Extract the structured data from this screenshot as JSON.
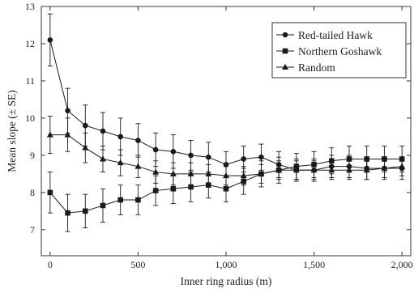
{
  "chart_data": {
    "type": "line",
    "title": "",
    "xlabel": "Inner ring radius (m)",
    "ylabel": "Mean slope (± SE)",
    "xlim": [
      -50,
      2050
    ],
    "ylim": [
      6.3,
      13
    ],
    "x_ticks": [
      0,
      500,
      1000,
      1500,
      2000
    ],
    "x_tick_labels": [
      "0",
      "500",
      "1,000",
      "1,500",
      "2,000"
    ],
    "y_ticks": [
      7,
      8,
      9,
      10,
      11,
      12,
      13
    ],
    "y_tick_labels": [
      "7",
      "8",
      "9",
      "10",
      "11",
      "12",
      "13"
    ],
    "grid": false,
    "legend_position": "top-right",
    "x": [
      0,
      100,
      200,
      300,
      400,
      500,
      600,
      700,
      800,
      900,
      1000,
      1100,
      1200,
      1300,
      1400,
      1500,
      1600,
      1700,
      1800,
      1900,
      2000
    ],
    "series": [
      {
        "name": "Red-tailed Hawk",
        "marker": "circle",
        "values": [
          12.1,
          10.2,
          9.8,
          9.65,
          9.5,
          9.4,
          9.15,
          9.1,
          9.0,
          8.95,
          8.75,
          8.9,
          8.95,
          8.75,
          8.6,
          8.6,
          8.7,
          8.7,
          8.65,
          8.65,
          8.65
        ],
        "se": [
          0.7,
          0.6,
          0.55,
          0.5,
          0.5,
          0.45,
          0.45,
          0.45,
          0.4,
          0.4,
          0.35,
          0.35,
          0.35,
          0.35,
          0.3,
          0.3,
          0.3,
          0.3,
          0.3,
          0.3,
          0.3
        ]
      },
      {
        "name": "Northern Goshawk",
        "marker": "square",
        "values": [
          8.0,
          7.45,
          7.5,
          7.65,
          7.8,
          7.8,
          8.05,
          8.1,
          8.15,
          8.2,
          8.1,
          8.3,
          8.5,
          8.6,
          8.7,
          8.75,
          8.85,
          8.9,
          8.9,
          8.9,
          8.9
        ],
        "se": [
          0.55,
          0.5,
          0.45,
          0.45,
          0.4,
          0.4,
          0.4,
          0.4,
          0.4,
          0.35,
          0.35,
          0.35,
          0.35,
          0.35,
          0.35,
          0.35,
          0.35,
          0.35,
          0.35,
          0.35,
          0.35
        ]
      },
      {
        "name": "Random",
        "marker": "triangle",
        "values": [
          9.55,
          9.55,
          9.2,
          8.9,
          8.8,
          8.7,
          8.55,
          8.5,
          8.5,
          8.5,
          8.45,
          8.45,
          8.5,
          8.6,
          8.6,
          8.6,
          8.6,
          8.6,
          8.6,
          8.65,
          8.7
        ],
        "se": [
          0.5,
          0.45,
          0.4,
          0.35,
          0.35,
          0.3,
          0.3,
          0.3,
          0.3,
          0.25,
          0.25,
          0.25,
          0.25,
          0.25,
          0.25,
          0.25,
          0.25,
          0.25,
          0.25,
          0.25,
          0.25
        ]
      }
    ]
  }
}
